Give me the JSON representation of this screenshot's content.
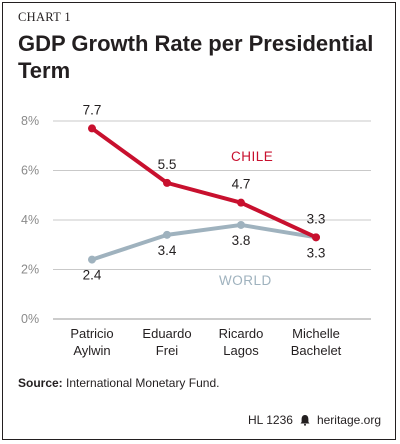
{
  "kicker": "CHART 1",
  "title": "GDP Growth Rate per Presidential Term",
  "source_label": "Source:",
  "source_text": "International Monetary Fund.",
  "footer_code": "HL 1236",
  "footer_site": "heritage.org",
  "colors": {
    "chile": "#c8102e",
    "world": "#9fb2be",
    "grid": "#c9c9c9",
    "text": "#231f20",
    "axis_text": "#8a8a8a"
  },
  "chart_data": {
    "type": "line",
    "categories": [
      "Patricio Aylwin",
      "Eduardo Frei",
      "Ricardo Lagos",
      "Michelle Bachelet"
    ],
    "category_lines": [
      [
        "Patricio",
        "Aylwin"
      ],
      [
        "Eduardo",
        "Frei"
      ],
      [
        "Ricardo",
        "Lagos"
      ],
      [
        "Michelle",
        "Bachelet"
      ]
    ],
    "yticks": [
      0,
      2,
      4,
      6,
      8
    ],
    "ytick_labels": [
      "0%",
      "2%",
      "4%",
      "6%",
      "8%"
    ],
    "ylim": [
      0,
      8
    ],
    "grid": true,
    "series": [
      {
        "name": "CHILE",
        "values": [
          7.7,
          5.5,
          4.7,
          3.3
        ],
        "labels": [
          "7.7",
          "5.5",
          "4.7",
          "3.3"
        ]
      },
      {
        "name": "WORLD",
        "values": [
          2.4,
          3.4,
          3.8,
          3.3
        ],
        "labels": [
          "2.4",
          "3.4",
          "3.8",
          "3.3"
        ]
      }
    ]
  }
}
